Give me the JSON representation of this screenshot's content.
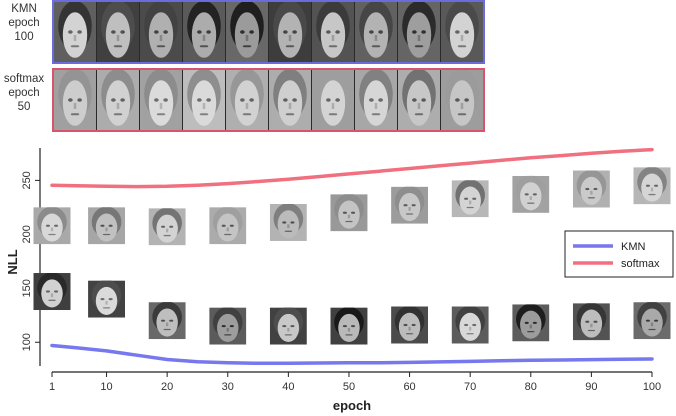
{
  "panels": {
    "top": {
      "label_line1": "KMN",
      "label_line2": "epoch 100",
      "border_color": "#6b6bdd",
      "image_count": 10
    },
    "bottom": {
      "label_line1": "softmax",
      "label_line2": "epoch 50",
      "border_color": "#d8546a",
      "image_count": 10
    }
  },
  "chart_data": {
    "type": "line",
    "xlabel": "epoch",
    "ylabel": "NLL",
    "xticks": [
      1,
      10,
      20,
      30,
      40,
      50,
      60,
      70,
      80,
      90,
      100
    ],
    "yticks": [
      100,
      150,
      200,
      250
    ],
    "xlim": [
      1,
      100
    ],
    "ylim": [
      78,
      280
    ],
    "grid": false,
    "legend_position": "right",
    "series": [
      {
        "name": "KMN",
        "color": "#7777ee",
        "x": [
          1,
          5,
          10,
          15,
          20,
          25,
          30,
          35,
          40,
          45,
          50,
          55,
          60,
          65,
          70,
          75,
          80,
          85,
          90,
          95,
          100
        ],
        "y": [
          97,
          95,
          92,
          88,
          84,
          82,
          81,
          80.5,
          80.5,
          80.8,
          81,
          81,
          81.3,
          81.8,
          82.3,
          82.8,
          83.3,
          83.6,
          83.9,
          84.2,
          84.5
        ]
      },
      {
        "name": "softmax",
        "color": "#f07080",
        "x": [
          1,
          5,
          10,
          15,
          20,
          25,
          30,
          35,
          40,
          45,
          50,
          55,
          60,
          65,
          70,
          75,
          80,
          85,
          90,
          95,
          100
        ],
        "y": [
          245.5,
          245,
          244.5,
          244.2,
          244.5,
          245.5,
          247,
          249,
          251,
          253.5,
          256,
          258.5,
          261,
          263.5,
          266,
          268.5,
          271,
          273,
          275.2,
          277,
          278.5
        ]
      }
    ],
    "face_markers": [
      {
        "series": "KMN",
        "epoch": 1,
        "nll": 147
      },
      {
        "series": "KMN",
        "epoch": 10,
        "nll": 140
      },
      {
        "series": "KMN",
        "epoch": 20,
        "nll": 120
      },
      {
        "series": "KMN",
        "epoch": 30,
        "nll": 115
      },
      {
        "series": "KMN",
        "epoch": 40,
        "nll": 115
      },
      {
        "series": "KMN",
        "epoch": 50,
        "nll": 115
      },
      {
        "series": "KMN",
        "epoch": 60,
        "nll": 116
      },
      {
        "series": "KMN",
        "epoch": 70,
        "nll": 116
      },
      {
        "series": "KMN",
        "epoch": 80,
        "nll": 118
      },
      {
        "series": "KMN",
        "epoch": 90,
        "nll": 119
      },
      {
        "series": "KMN",
        "epoch": 100,
        "nll": 120
      },
      {
        "series": "softmax",
        "epoch": 1,
        "nll": 208
      },
      {
        "series": "softmax",
        "epoch": 10,
        "nll": 208
      },
      {
        "series": "softmax",
        "epoch": 20,
        "nll": 207
      },
      {
        "series": "softmax",
        "epoch": 30,
        "nll": 208
      },
      {
        "series": "softmax",
        "epoch": 40,
        "nll": 211
      },
      {
        "series": "softmax",
        "epoch": 50,
        "nll": 220
      },
      {
        "series": "softmax",
        "epoch": 60,
        "nll": 227
      },
      {
        "series": "softmax",
        "epoch": 70,
        "nll": 233
      },
      {
        "series": "softmax",
        "epoch": 80,
        "nll": 237
      },
      {
        "series": "softmax",
        "epoch": 90,
        "nll": 242
      },
      {
        "series": "softmax",
        "epoch": 100,
        "nll": 245
      }
    ]
  }
}
